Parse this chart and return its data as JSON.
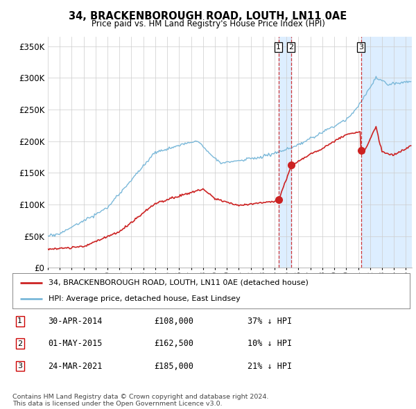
{
  "title": "34, BRACKENBOROUGH ROAD, LOUTH, LN11 0AE",
  "subtitle": "Price paid vs. HM Land Registry's House Price Index (HPI)",
  "hpi_color": "#7ab8d9",
  "price_color": "#cc2222",
  "vline_color": "#cc2222",
  "shade_color": "#ddeeff",
  "yticks": [
    0,
    50000,
    100000,
    150000,
    200000,
    250000,
    300000,
    350000
  ],
  "ytick_labels": [
    "£0",
    "£50K",
    "£100K",
    "£150K",
    "£200K",
    "£250K",
    "£300K",
    "£350K"
  ],
  "xmin": 1995.0,
  "xmax": 2025.5,
  "ymin": 0,
  "ymax": 365000,
  "transactions": [
    {
      "date": 2014.33,
      "price": 108000,
      "label": "1"
    },
    {
      "date": 2015.37,
      "price": 162500,
      "label": "2"
    },
    {
      "date": 2021.23,
      "price": 185000,
      "label": "3"
    }
  ],
  "transaction_table": [
    {
      "num": "1",
      "date": "30-APR-2014",
      "price": "£108,000",
      "pct": "37% ↓ HPI"
    },
    {
      "num": "2",
      "date": "01-MAY-2015",
      "price": "£162,500",
      "pct": "10% ↓ HPI"
    },
    {
      "num": "3",
      "date": "24-MAR-2021",
      "price": "£185,000",
      "pct": "21% ↓ HPI"
    }
  ],
  "legend_line1": "34, BRACKENBOROUGH ROAD, LOUTH, LN11 0AE (detached house)",
  "legend_line2": "HPI: Average price, detached house, East Lindsey",
  "footnote": "Contains HM Land Registry data © Crown copyright and database right 2024.\nThis data is licensed under the Open Government Licence v3.0.",
  "background_color": "#ffffff",
  "grid_color": "#cccccc"
}
